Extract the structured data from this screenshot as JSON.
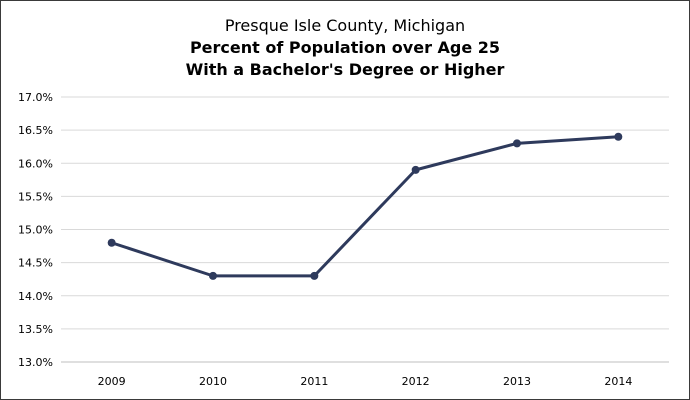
{
  "chart_data": {
    "type": "line",
    "title_lines": [
      "Presque Isle County, Michigan",
      "Percent of Population over Age 25",
      "With a Bachelor's Degree or Higher"
    ],
    "categories": [
      "2009",
      "2010",
      "2011",
      "2012",
      "2013",
      "2014"
    ],
    "series": [
      {
        "values": [
          14.8,
          14.3,
          14.3,
          15.9,
          16.3,
          16.4
        ]
      }
    ],
    "ylim": [
      13.0,
      17.0
    ],
    "yticks": [
      13.0,
      13.5,
      14.0,
      14.5,
      15.0,
      15.5,
      16.0,
      16.5,
      17.0
    ],
    "ytick_labels": [
      "13.0%",
      "13.5%",
      "14.0%",
      "14.5%",
      "15.0%",
      "15.5%",
      "16.0%",
      "16.5%",
      "17.0%"
    ],
    "grid": true,
    "legend": "none",
    "colors": {
      "line": "#2e3a5c",
      "grid": "#d9d9d9",
      "axis": "#bfbfbf"
    }
  }
}
